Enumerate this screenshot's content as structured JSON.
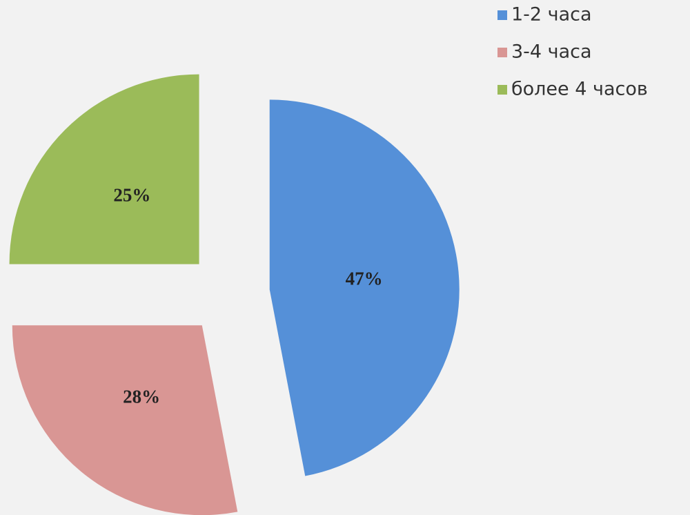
{
  "chart_data": {
    "type": "pie",
    "exploded": true,
    "categories": [
      "1-2 часа",
      "3-4 часа",
      "более 4 часов"
    ],
    "values": [
      47,
      28,
      25
    ],
    "value_labels": [
      "47%",
      "28%",
      "25%"
    ],
    "colors": [
      "#5590d8",
      "#d99694",
      "#9bbb59"
    ],
    "legend": "top-right"
  }
}
